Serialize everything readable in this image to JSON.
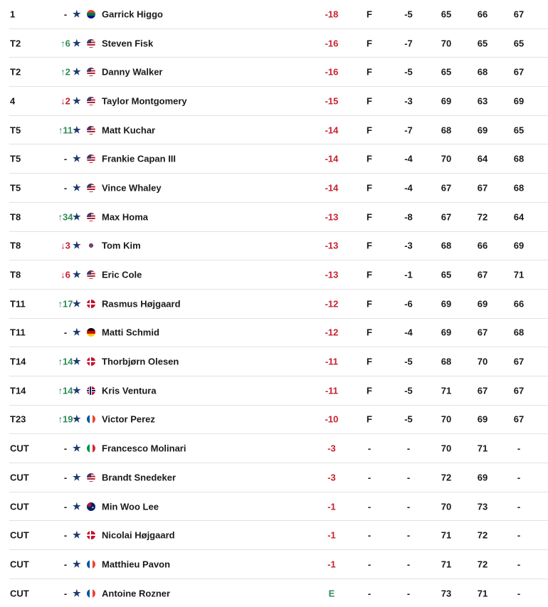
{
  "leaderboard": [
    {
      "pos": "1",
      "move": "-",
      "dir": "",
      "player": "Garrick Higgo",
      "flag": "za",
      "total": "-18",
      "thru": "F",
      "today": "-5",
      "r1": "65",
      "r2": "66",
      "r3": "67"
    },
    {
      "pos": "T2",
      "move": "↑6",
      "dir": "up",
      "player": "Steven Fisk",
      "flag": "us",
      "total": "-16",
      "thru": "F",
      "today": "-7",
      "r1": "70",
      "r2": "65",
      "r3": "65"
    },
    {
      "pos": "T2",
      "move": "↑2",
      "dir": "up",
      "player": "Danny Walker",
      "flag": "us",
      "total": "-16",
      "thru": "F",
      "today": "-5",
      "r1": "65",
      "r2": "68",
      "r3": "67"
    },
    {
      "pos": "4",
      "move": "↓2",
      "dir": "down",
      "player": "Taylor Montgomery",
      "flag": "us",
      "total": "-15",
      "thru": "F",
      "today": "-3",
      "r1": "69",
      "r2": "63",
      "r3": "69"
    },
    {
      "pos": "T5",
      "move": "↑11",
      "dir": "up",
      "player": "Matt Kuchar",
      "flag": "us",
      "total": "-14",
      "thru": "F",
      "today": "-7",
      "r1": "68",
      "r2": "69",
      "r3": "65"
    },
    {
      "pos": "T5",
      "move": "-",
      "dir": "",
      "player": "Frankie Capan III",
      "flag": "us",
      "total": "-14",
      "thru": "F",
      "today": "-4",
      "r1": "70",
      "r2": "64",
      "r3": "68"
    },
    {
      "pos": "T5",
      "move": "-",
      "dir": "",
      "player": "Vince Whaley",
      "flag": "us",
      "total": "-14",
      "thru": "F",
      "today": "-4",
      "r1": "67",
      "r2": "67",
      "r3": "68"
    },
    {
      "pos": "T8",
      "move": "↑34",
      "dir": "up",
      "player": "Max Homa",
      "flag": "us",
      "total": "-13",
      "thru": "F",
      "today": "-8",
      "r1": "67",
      "r2": "72",
      "r3": "64"
    },
    {
      "pos": "T8",
      "move": "↓3",
      "dir": "down",
      "player": "Tom Kim",
      "flag": "kr",
      "total": "-13",
      "thru": "F",
      "today": "-3",
      "r1": "68",
      "r2": "66",
      "r3": "69"
    },
    {
      "pos": "T8",
      "move": "↓6",
      "dir": "down",
      "player": "Eric Cole",
      "flag": "us",
      "total": "-13",
      "thru": "F",
      "today": "-1",
      "r1": "65",
      "r2": "67",
      "r3": "71"
    },
    {
      "pos": "T11",
      "move": "↑17",
      "dir": "up",
      "player": "Rasmus Højgaard",
      "flag": "dk",
      "total": "-12",
      "thru": "F",
      "today": "-6",
      "r1": "69",
      "r2": "69",
      "r3": "66"
    },
    {
      "pos": "T11",
      "move": "-",
      "dir": "",
      "player": "Matti Schmid",
      "flag": "de",
      "total": "-12",
      "thru": "F",
      "today": "-4",
      "r1": "69",
      "r2": "67",
      "r3": "68"
    },
    {
      "pos": "T14",
      "move": "↑14",
      "dir": "up",
      "player": "Thorbjørn Olesen",
      "flag": "dk",
      "total": "-11",
      "thru": "F",
      "today": "-5",
      "r1": "68",
      "r2": "70",
      "r3": "67"
    },
    {
      "pos": "T14",
      "move": "↑14",
      "dir": "up",
      "player": "Kris Ventura",
      "flag": "no",
      "total": "-11",
      "thru": "F",
      "today": "-5",
      "r1": "71",
      "r2": "67",
      "r3": "67"
    },
    {
      "pos": "T23",
      "move": "↑19",
      "dir": "up",
      "player": "Victor Perez",
      "flag": "fr",
      "total": "-10",
      "thru": "F",
      "today": "-5",
      "r1": "70",
      "r2": "69",
      "r3": "67"
    },
    {
      "pos": "CUT",
      "move": "-",
      "dir": "",
      "player": "Francesco Molinari",
      "flag": "it",
      "total": "-3",
      "thru": "-",
      "today": "-",
      "r1": "70",
      "r2": "71",
      "r3": "-"
    },
    {
      "pos": "CUT",
      "move": "-",
      "dir": "",
      "player": "Brandt Snedeker",
      "flag": "us",
      "total": "-3",
      "thru": "-",
      "today": "-",
      "r1": "72",
      "r2": "69",
      "r3": "-"
    },
    {
      "pos": "CUT",
      "move": "-",
      "dir": "",
      "player": "Min Woo Lee",
      "flag": "au",
      "total": "-1",
      "thru": "-",
      "today": "-",
      "r1": "70",
      "r2": "73",
      "r3": "-"
    },
    {
      "pos": "CUT",
      "move": "-",
      "dir": "",
      "player": "Nicolai Højgaard",
      "flag": "dk",
      "total": "-1",
      "thru": "-",
      "today": "-",
      "r1": "71",
      "r2": "72",
      "r3": "-"
    },
    {
      "pos": "CUT",
      "move": "-",
      "dir": "",
      "player": "Matthieu Pavon",
      "flag": "fr",
      "total": "-1",
      "thru": "-",
      "today": "-",
      "r1": "71",
      "r2": "72",
      "r3": "-"
    },
    {
      "pos": "CUT",
      "move": "-",
      "dir": "",
      "player": "Antoine Rozner",
      "flag": "fr",
      "total": "E",
      "thru": "-",
      "today": "-",
      "r1": "73",
      "r2": "71",
      "r3": "-"
    }
  ],
  "star_icon": "★"
}
